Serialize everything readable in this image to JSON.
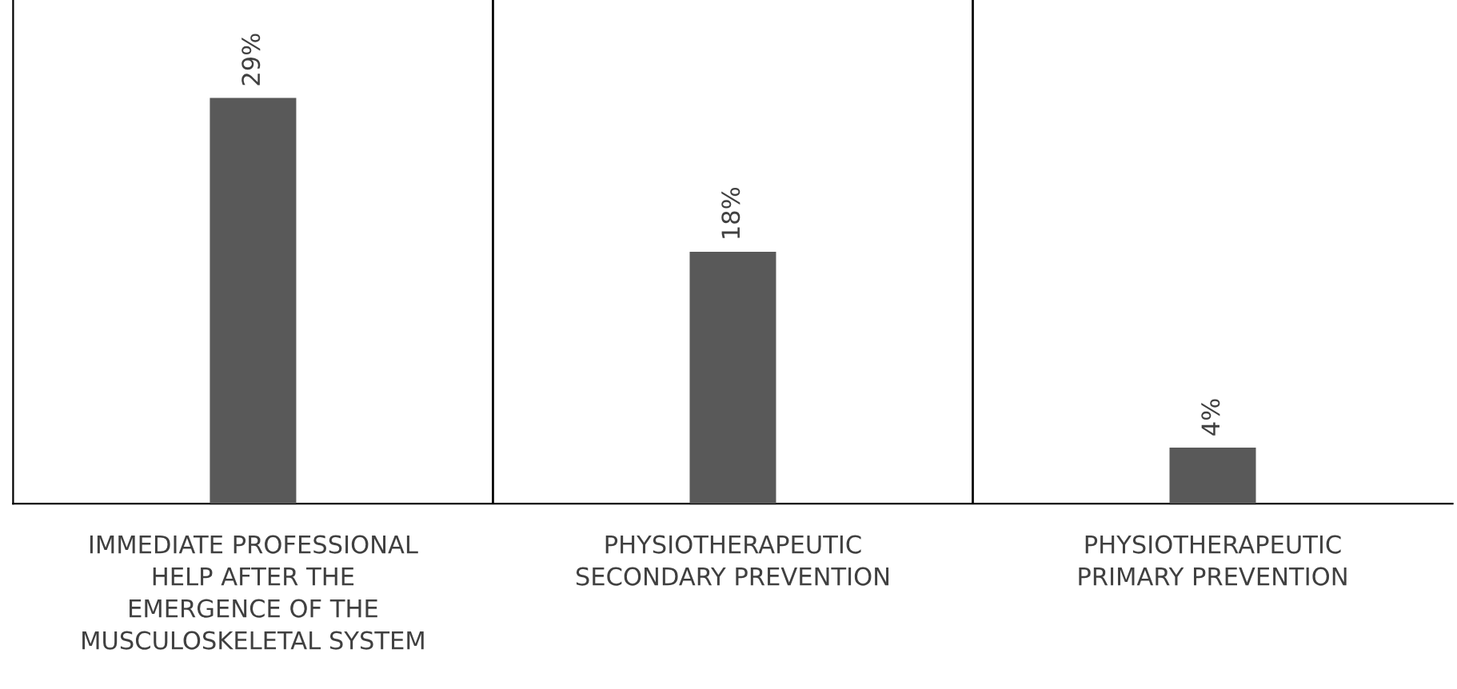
{
  "chart_data": {
    "type": "bar",
    "categories": [
      "IMMEDIATE PROFESSIONAL HELP AFTER THE EMERGENCE OF THE MUSCULOSKELETAL SYSTEM",
      "PHYSIOTHERAPEUTIC SECONDARY PREVENTION",
      "PHYSIOTHERAPEUTIC PRIMARY PREVENTION"
    ],
    "values": [
      29,
      18,
      4
    ],
    "value_labels": [
      "29%",
      "18%",
      "4%"
    ],
    "color": "#595959",
    "ylim": [
      0,
      36
    ],
    "grid": "x",
    "legend": false,
    "tick_labels": "x"
  }
}
